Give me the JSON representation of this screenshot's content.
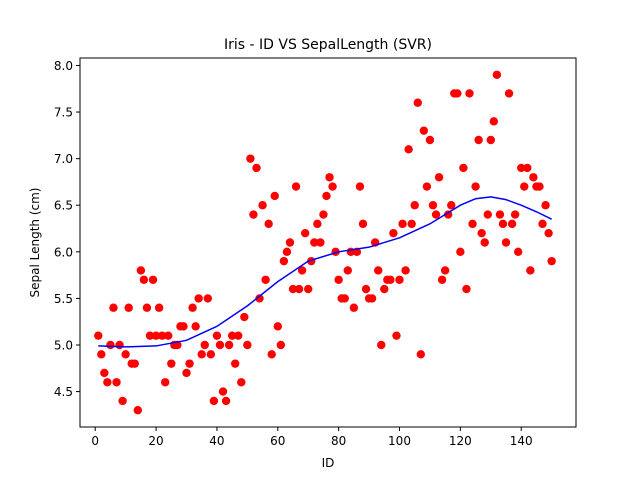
{
  "chart_data": {
    "type": "scatter",
    "title": "Iris - ID VS SepalLength (SVR)",
    "xlabel": "ID",
    "ylabel": "Sepal Length (cm)",
    "xlim": [
      -5,
      158
    ],
    "ylim": [
      4.12,
      8.08
    ],
    "xticks": [
      0,
      20,
      40,
      60,
      80,
      100,
      120,
      140
    ],
    "xtick_labels": [
      "0",
      "20",
      "40",
      "60",
      "80",
      "100",
      "120",
      "140"
    ],
    "yticks": [
      4.5,
      5.0,
      5.5,
      6.0,
      6.5,
      7.0,
      7.5,
      8.0
    ],
    "ytick_labels": [
      "4.5",
      "5.0",
      "5.5",
      "6.0",
      "6.5",
      "7.0",
      "7.5",
      "8.0"
    ],
    "grid": false,
    "series": [
      {
        "kind": "scatter",
        "color": "#ff0000",
        "x": [
          1,
          2,
          3,
          4,
          5,
          6,
          7,
          8,
          9,
          10,
          11,
          12,
          13,
          14,
          15,
          16,
          17,
          18,
          19,
          20,
          21,
          22,
          23,
          24,
          25,
          26,
          27,
          28,
          29,
          30,
          31,
          32,
          33,
          34,
          35,
          36,
          37,
          38,
          39,
          40,
          41,
          42,
          43,
          44,
          45,
          46,
          47,
          48,
          49,
          50,
          51,
          52,
          53,
          54,
          55,
          56,
          57,
          58,
          59,
          60,
          61,
          62,
          63,
          64,
          65,
          66,
          67,
          68,
          69,
          70,
          71,
          72,
          73,
          74,
          75,
          76,
          77,
          78,
          79,
          80,
          81,
          82,
          83,
          84,
          85,
          86,
          87,
          88,
          89,
          90,
          91,
          92,
          93,
          94,
          95,
          96,
          97,
          98,
          99,
          100,
          101,
          102,
          103,
          104,
          105,
          106,
          107,
          108,
          109,
          110,
          111,
          112,
          113,
          114,
          115,
          116,
          117,
          118,
          119,
          120,
          121,
          122,
          123,
          124,
          125,
          126,
          127,
          128,
          129,
          130,
          131,
          132,
          133,
          134,
          135,
          136,
          137,
          138,
          139,
          140,
          141,
          142,
          143,
          144,
          145,
          146,
          147,
          148,
          149,
          150
        ],
        "y": [
          5.1,
          4.9,
          4.7,
          4.6,
          5.0,
          5.4,
          4.6,
          5.0,
          4.4,
          4.9,
          5.4,
          4.8,
          4.8,
          4.3,
          5.8,
          5.7,
          5.4,
          5.1,
          5.7,
          5.1,
          5.4,
          5.1,
          4.6,
          5.1,
          4.8,
          5.0,
          5.0,
          5.2,
          5.2,
          4.7,
          4.8,
          5.4,
          5.2,
          5.5,
          4.9,
          5.0,
          5.5,
          4.9,
          4.4,
          5.1,
          5.0,
          4.5,
          4.4,
          5.0,
          5.1,
          4.8,
          5.1,
          4.6,
          5.3,
          5.0,
          7.0,
          6.4,
          6.9,
          5.5,
          6.5,
          5.7,
          6.3,
          4.9,
          6.6,
          5.2,
          5.0,
          5.9,
          6.0,
          6.1,
          5.6,
          6.7,
          5.6,
          5.8,
          6.2,
          5.6,
          5.9,
          6.1,
          6.3,
          6.1,
          6.4,
          6.6,
          6.8,
          6.7,
          6.0,
          5.7,
          5.5,
          5.5,
          5.8,
          6.0,
          5.4,
          6.0,
          6.7,
          6.3,
          5.6,
          5.5,
          5.5,
          6.1,
          5.8,
          5.0,
          5.6,
          5.7,
          5.7,
          6.2,
          5.1,
          5.7,
          6.3,
          5.8,
          7.1,
          6.3,
          6.5,
          7.6,
          4.9,
          7.3,
          6.7,
          7.2,
          6.5,
          6.4,
          6.8,
          5.7,
          5.8,
          6.4,
          6.5,
          7.7,
          7.7,
          6.0,
          6.9,
          5.6,
          7.7,
          6.3,
          6.7,
          7.2,
          6.2,
          6.1,
          6.4,
          7.2,
          7.4,
          7.9,
          6.4,
          6.3,
          6.1,
          7.7,
          6.3,
          6.4,
          6.0,
          6.9,
          6.7,
          6.9,
          5.8,
          6.8,
          6.7,
          6.7,
          6.3,
          6.5,
          6.2,
          5.9
        ]
      },
      {
        "kind": "line",
        "color": "#0000ff",
        "x": [
          1,
          10,
          20,
          30,
          40,
          50,
          60,
          70,
          80,
          90,
          100,
          110,
          120,
          125,
          130,
          135,
          140,
          145,
          150
        ],
        "y": [
          4.99,
          4.98,
          4.99,
          5.05,
          5.2,
          5.42,
          5.68,
          5.9,
          6.0,
          6.05,
          6.15,
          6.3,
          6.5,
          6.57,
          6.59,
          6.56,
          6.5,
          6.43,
          6.35
        ]
      }
    ]
  }
}
